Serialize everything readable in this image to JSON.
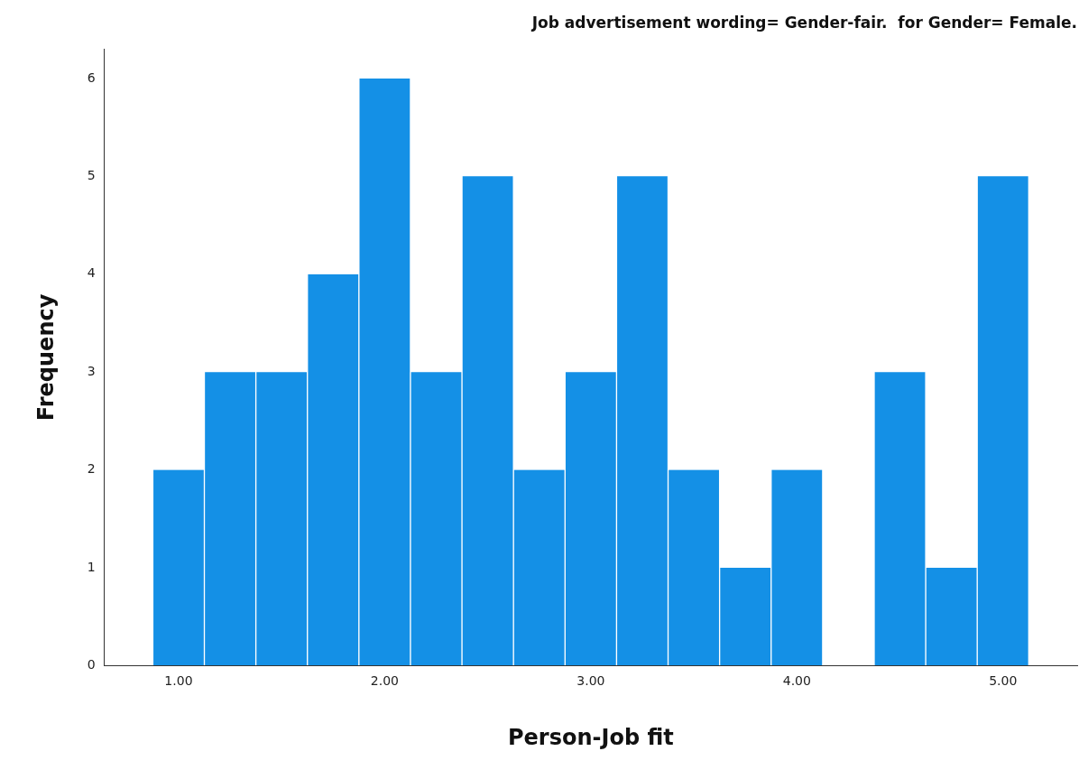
{
  "chart_data": {
    "type": "histogram",
    "title": "Job advertisement wording= Gender-fair.  for Gender= Female.",
    "xlabel": "Person-Job fit",
    "ylabel": "Frequency",
    "color": "#1490e6",
    "bins": [
      0.875,
      1.125,
      1.375,
      1.625,
      1.875,
      2.125,
      2.375,
      2.625,
      2.875,
      3.125,
      3.375,
      3.625,
      3.875,
      4.125,
      4.375,
      4.625,
      4.875,
      5.125
    ],
    "values": [
      2,
      3,
      3,
      4,
      6,
      3,
      5,
      2,
      3,
      5,
      2,
      1,
      2,
      0,
      3,
      1,
      5
    ],
    "xlim": [
      0.64,
      5.36
    ],
    "xticks": [
      {
        "value": 1,
        "label": "1.00"
      },
      {
        "value": 2,
        "label": "2.00"
      },
      {
        "value": 3,
        "label": "3.00"
      },
      {
        "value": 4,
        "label": "4.00"
      },
      {
        "value": 5,
        "label": "5.00"
      }
    ],
    "ylim": [
      0,
      6.3
    ],
    "yticks": [
      0,
      1,
      2,
      3,
      4,
      5,
      6
    ],
    "grid": false,
    "legend": false
  }
}
